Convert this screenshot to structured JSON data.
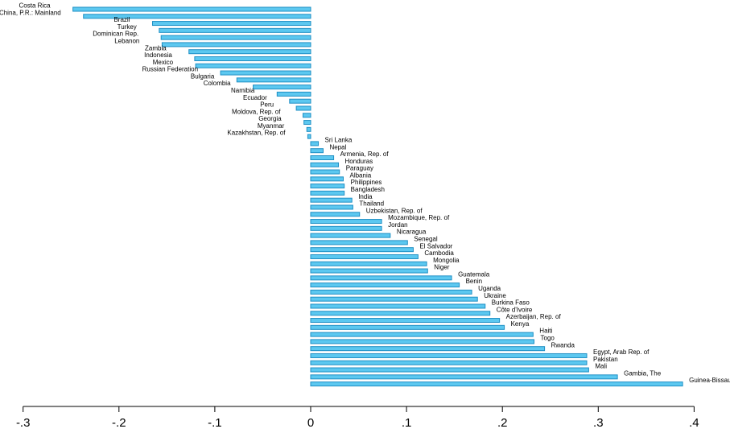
{
  "chart_data": {
    "type": "bar",
    "orientation": "horizontal",
    "title": "",
    "xlabel": "",
    "ylabel": "",
    "xlim": [
      -0.3,
      0.4
    ],
    "grid": false,
    "xticks": [
      {
        "value": -0.3,
        "label": "-.3"
      },
      {
        "value": -0.2,
        "label": "-.2"
      },
      {
        "value": -0.1,
        "label": "-.1"
      },
      {
        "value": 0,
        "label": "0"
      },
      {
        "value": 0.1,
        "label": ".1"
      },
      {
        "value": 0.2,
        "label": ".2"
      },
      {
        "value": 0.3,
        "label": ".3"
      },
      {
        "value": 0.4,
        "label": ".4"
      }
    ],
    "categories": [
      "Costa Rica",
      "China, P.R.: Mainland",
      "Brazil",
      "Turkey",
      "Dominican Rep.",
      "Lebanon",
      "Zambia",
      "Indonesia",
      "Mexico",
      "Russian Federation",
      "Bulgaria",
      "Colombia",
      "Namibia",
      "Ecuador",
      "Peru",
      "Moldova, Rep. of",
      "Georgia",
      "Myanmar",
      "Kazakhstan, Rep. of",
      "Sri Lanka",
      "Nepal",
      "Armenia, Rep. of",
      "Honduras",
      "Paraguay",
      "Albania",
      "Philippines",
      "Bangladesh",
      "India",
      "Thailand",
      "Uzbekistan, Rep. of",
      "Mozambique, Rep. of",
      "Jordan",
      "Nicaragua",
      "Senegal",
      "El Salvador",
      "Cambodia",
      "Mongolia",
      "Niger",
      "Guatemala",
      "Benin",
      "Uganda",
      "Ukraine",
      "Burkina Faso",
      "Côte d'Ivoire",
      "Azerbaijan, Rep. of",
      "Kenya",
      "Haiti",
      "Togo",
      "Rwanda",
      "Egypt, Arab Rep. of",
      "Pakistan",
      "Mali",
      "Gambia, The",
      "Guinea-Bissau"
    ],
    "values": [
      -0.248,
      -0.237,
      -0.165,
      -0.158,
      -0.156,
      -0.155,
      -0.127,
      -0.121,
      -0.12,
      -0.094,
      -0.077,
      -0.06,
      -0.035,
      -0.022,
      -0.015,
      -0.008,
      -0.007,
      -0.004,
      -0.003,
      0.008,
      0.013,
      0.024,
      0.029,
      0.03,
      0.034,
      0.035,
      0.035,
      0.043,
      0.044,
      0.051,
      0.074,
      0.074,
      0.083,
      0.101,
      0.107,
      0.112,
      0.121,
      0.122,
      0.147,
      0.155,
      0.168,
      0.174,
      0.182,
      0.187,
      0.197,
      0.202,
      0.232,
      0.233,
      0.244,
      0.288,
      0.288,
      0.29,
      0.32,
      0.388
    ],
    "colors": {
      "bar_fill": "#5cc8f0",
      "bar_stroke": "#1f8fc4",
      "axis": "#000000"
    }
  }
}
